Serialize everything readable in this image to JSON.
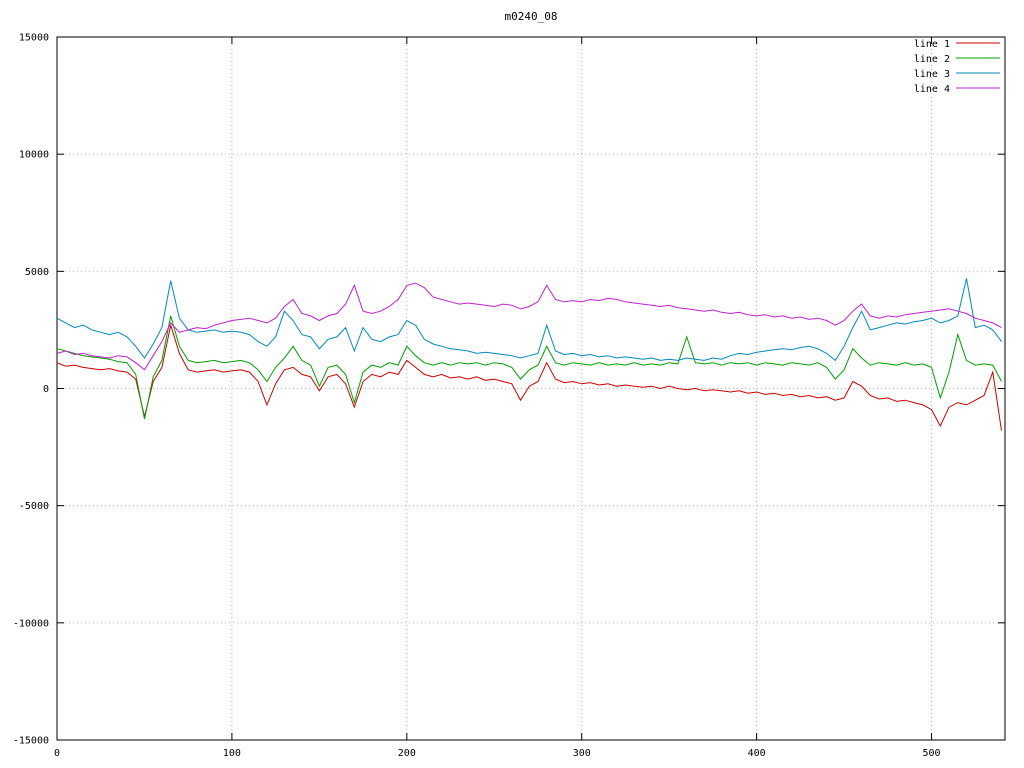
{
  "title": "m0240_08",
  "chart_data": {
    "type": "line",
    "title": "m0240_08",
    "xlabel": "",
    "ylabel": "",
    "xlim": [
      0,
      542
    ],
    "ylim": [
      -15000,
      15000
    ],
    "xticks": [
      0,
      100,
      200,
      300,
      400,
      500
    ],
    "yticks": [
      -15000,
      -10000,
      -5000,
      0,
      5000,
      10000,
      15000
    ],
    "grid": true,
    "legend_position": "top-right",
    "background_color": "#ffffff",
    "grid_color": "#b5b5b5",
    "axis_color": "#000000",
    "x": [
      0,
      5,
      10,
      15,
      20,
      25,
      30,
      35,
      40,
      45,
      50,
      55,
      60,
      65,
      70,
      75,
      80,
      85,
      90,
      95,
      100,
      105,
      110,
      115,
      120,
      125,
      130,
      135,
      140,
      145,
      150,
      155,
      160,
      165,
      170,
      175,
      180,
      185,
      190,
      195,
      200,
      205,
      210,
      215,
      220,
      225,
      230,
      235,
      240,
      245,
      250,
      255,
      260,
      265,
      270,
      275,
      280,
      285,
      290,
      295,
      300,
      305,
      310,
      315,
      320,
      325,
      330,
      335,
      340,
      345,
      350,
      355,
      360,
      365,
      370,
      375,
      380,
      385,
      390,
      395,
      400,
      405,
      410,
      415,
      420,
      425,
      430,
      435,
      440,
      445,
      450,
      455,
      460,
      465,
      470,
      475,
      480,
      485,
      490,
      495,
      500,
      505,
      510,
      515,
      520,
      525,
      530,
      535,
      540
    ],
    "series": [
      {
        "name": "line 1",
        "color": "#cc0000",
        "values": [
          1100,
          950,
          1000,
          900,
          850,
          800,
          850,
          750,
          700,
          400,
          -1200,
          300,
          900,
          2700,
          1500,
          800,
          700,
          750,
          800,
          700,
          750,
          800,
          700,
          300,
          -700,
          200,
          800,
          900,
          600,
          500,
          -100,
          500,
          600,
          200,
          -800,
          300,
          600,
          500,
          700,
          600,
          1200,
          900,
          600,
          500,
          600,
          450,
          500,
          400,
          500,
          350,
          400,
          300,
          200,
          -500,
          100,
          300,
          1100,
          400,
          250,
          300,
          200,
          250,
          150,
          200,
          100,
          150,
          100,
          50,
          100,
          0,
          100,
          0,
          -50,
          0,
          -100,
          -50,
          -100,
          -150,
          -100,
          -200,
          -150,
          -250,
          -200,
          -300,
          -250,
          -350,
          -300,
          -400,
          -350,
          -500,
          -400,
          300,
          100,
          -300,
          -450,
          -400,
          -550,
          -500,
          -600,
          -700,
          -900,
          -1600,
          -800,
          -600,
          -700,
          -500,
          -300,
          700,
          -1800
        ]
      },
      {
        "name": "line 2",
        "color": "#00a000",
        "values": [
          1700,
          1600,
          1500,
          1400,
          1350,
          1300,
          1250,
          1150,
          1100,
          600,
          -1300,
          500,
          1200,
          3100,
          1800,
          1200,
          1100,
          1150,
          1200,
          1100,
          1150,
          1200,
          1100,
          800,
          300,
          900,
          1300,
          1800,
          1200,
          1000,
          100,
          900,
          1000,
          600,
          -600,
          700,
          1000,
          900,
          1100,
          1000,
          1800,
          1400,
          1100,
          1000,
          1100,
          1000,
          1100,
          1050,
          1100,
          1000,
          1100,
          1050,
          900,
          400,
          800,
          1000,
          1800,
          1100,
          1000,
          1100,
          1050,
          1000,
          1100,
          1000,
          1050,
          1000,
          1100,
          1000,
          1050,
          1000,
          1100,
          1050,
          2200,
          1100,
          1050,
          1100,
          1000,
          1100,
          1050,
          1100,
          1000,
          1100,
          1050,
          1000,
          1100,
          1050,
          1000,
          1100,
          900,
          400,
          800,
          1700,
          1300,
          1000,
          1100,
          1050,
          1000,
          1100,
          1000,
          1050,
          900,
          -400,
          700,
          2300,
          1200,
          1000,
          1050,
          1000,
          300
        ]
      },
      {
        "name": "line 3",
        "color": "#0088bb",
        "values": [
          3000,
          2800,
          2600,
          2700,
          2500,
          2400,
          2300,
          2400,
          2200,
          1800,
          1300,
          1900,
          2600,
          4600,
          3000,
          2500,
          2400,
          2450,
          2500,
          2400,
          2450,
          2400,
          2300,
          2000,
          1800,
          2200,
          3300,
          2900,
          2300,
          2200,
          1700,
          2100,
          2200,
          2600,
          1600,
          2600,
          2100,
          2000,
          2200,
          2300,
          2900,
          2700,
          2100,
          1900,
          1800,
          1700,
          1650,
          1600,
          1500,
          1550,
          1500,
          1450,
          1400,
          1300,
          1400,
          1500,
          2700,
          1600,
          1450,
          1500,
          1400,
          1450,
          1350,
          1400,
          1300,
          1350,
          1300,
          1250,
          1300,
          1200,
          1250,
          1200,
          1300,
          1250,
          1200,
          1300,
          1250,
          1400,
          1500,
          1450,
          1550,
          1600,
          1650,
          1700,
          1650,
          1750,
          1800,
          1700,
          1500,
          1200,
          1800,
          2600,
          3300,
          2500,
          2600,
          2700,
          2800,
          2750,
          2850,
          2900,
          3000,
          2800,
          2900,
          3100,
          4700,
          2600,
          2700,
          2500,
          2000
        ]
      },
      {
        "name": "line 4",
        "color": "#c020d0",
        "values": [
          1500,
          1600,
          1450,
          1500,
          1400,
          1350,
          1300,
          1400,
          1350,
          1100,
          800,
          1400,
          2000,
          2800,
          2400,
          2500,
          2600,
          2550,
          2700,
          2800,
          2900,
          2950,
          3000,
          2900,
          2800,
          3000,
          3500,
          3800,
          3200,
          3100,
          2900,
          3100,
          3200,
          3600,
          4400,
          3300,
          3200,
          3300,
          3500,
          3800,
          4400,
          4500,
          4300,
          3900,
          3800,
          3700,
          3600,
          3650,
          3600,
          3550,
          3500,
          3600,
          3550,
          3400,
          3500,
          3700,
          4400,
          3800,
          3700,
          3750,
          3700,
          3800,
          3750,
          3850,
          3800,
          3700,
          3650,
          3600,
          3550,
          3500,
          3550,
          3450,
          3400,
          3350,
          3300,
          3350,
          3250,
          3200,
          3250,
          3150,
          3100,
          3150,
          3050,
          3100,
          3000,
          3050,
          2950,
          3000,
          2900,
          2700,
          2900,
          3300,
          3600,
          3100,
          3000,
          3100,
          3050,
          3150,
          3200,
          3250,
          3300,
          3350,
          3400,
          3300,
          3200,
          3000,
          2900,
          2800,
          2600
        ]
      }
    ]
  }
}
